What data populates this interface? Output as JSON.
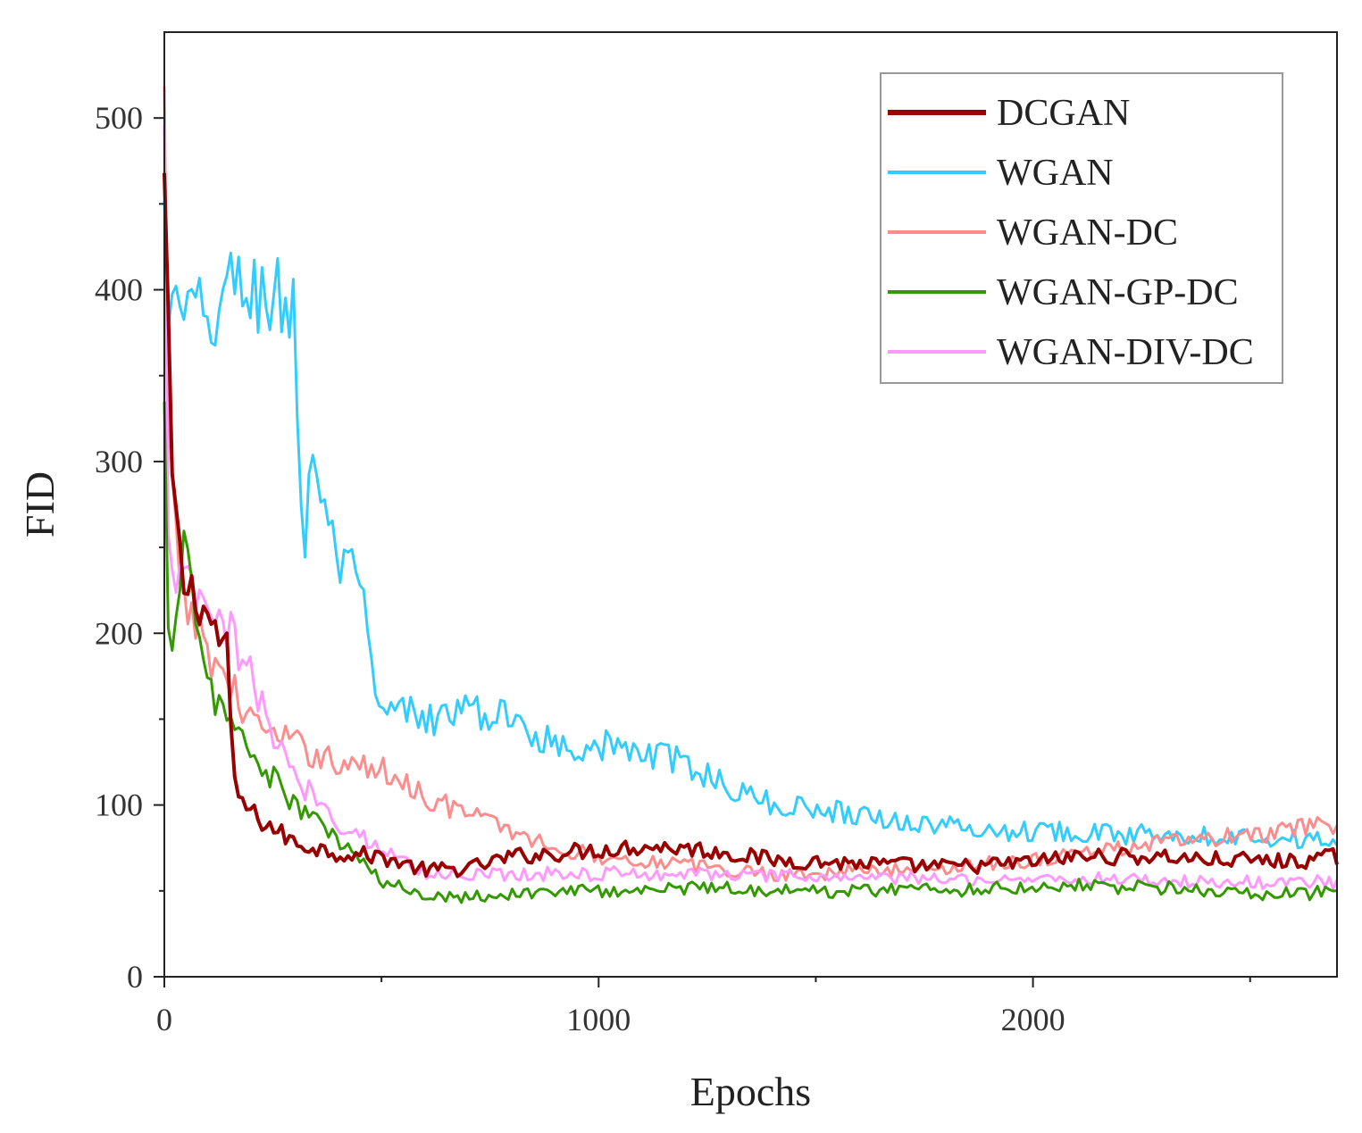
{
  "chart_data": {
    "type": "line",
    "title": "",
    "xlabel": "Epochs",
    "ylabel": "FID",
    "xlim": [
      0,
      2700
    ],
    "ylim": [
      0,
      550
    ],
    "x_ticks": [
      0,
      1000,
      2000
    ],
    "x_tick_labels": [
      "0",
      "1000",
      "2000"
    ],
    "y_ticks": [
      0,
      100,
      200,
      300,
      400,
      500
    ],
    "y_tick_labels": [
      "0",
      "100",
      "200",
      "300",
      "400",
      "500"
    ],
    "grid": false,
    "legend_position": "top-right",
    "series": [
      {
        "name": "DCGAN",
        "color": "#990000",
        "x": [
          0,
          15,
          40,
          80,
          120,
          145,
          160,
          200,
          300,
          400,
          500,
          600,
          700,
          800,
          900,
          1000,
          1100,
          1200,
          1300,
          1400,
          1500,
          1600,
          1700,
          1800,
          1900,
          2000,
          2100,
          2200,
          2300,
          2400,
          2500,
          2600,
          2700
        ],
        "values": [
          460,
          300,
          230,
          220,
          200,
          190,
          110,
          95,
          78,
          72,
          70,
          62,
          63,
          70,
          72,
          74,
          76,
          75,
          72,
          68,
          67,
          66,
          65,
          64,
          65,
          67,
          70,
          70,
          70,
          68,
          68,
          67,
          70
        ]
      },
      {
        "name": "WGAN",
        "color": "#33CCFF",
        "x": [
          0,
          10,
          50,
          100,
          150,
          200,
          250,
          300,
          320,
          340,
          360,
          400,
          450,
          480,
          500,
          550,
          600,
          700,
          800,
          900,
          1000,
          1100,
          1200,
          1300,
          1400,
          1500,
          1600,
          1700,
          1800,
          1900,
          2000,
          2100,
          2200,
          2300,
          2400,
          2500,
          2600,
          2700
        ],
        "values": [
          440,
          385,
          385,
          380,
          400,
          400,
          395,
          390,
          230,
          320,
          280,
          240,
          230,
          170,
          150,
          155,
          150,
          155,
          150,
          135,
          135,
          130,
          125,
          110,
          100,
          98,
          95,
          90,
          88,
          85,
          85,
          85,
          82,
          85,
          82,
          82,
          80,
          80
        ]
      },
      {
        "name": "WGAN-DC",
        "color": "#FF8C8C",
        "x": [
          0,
          10,
          30,
          60,
          100,
          150,
          200,
          250,
          300,
          350,
          400,
          450,
          500,
          550,
          600,
          700,
          800,
          900,
          1000,
          1100,
          1200,
          1300,
          1400,
          1500,
          1600,
          1700,
          1800,
          1900,
          2000,
          2100,
          2200,
          2300,
          2400,
          2500,
          2600,
          2700
        ],
        "values": [
          500,
          300,
          240,
          210,
          190,
          170,
          150,
          140,
          135,
          130,
          125,
          122,
          120,
          115,
          105,
          95,
          85,
          75,
          70,
          68,
          65,
          62,
          60,
          60,
          62,
          62,
          64,
          66,
          68,
          72,
          75,
          78,
          80,
          82,
          85,
          90
        ]
      },
      {
        "name": "WGAN-GP-DC",
        "color": "#339900",
        "x": [
          0,
          10,
          30,
          50,
          70,
          100,
          150,
          200,
          250,
          300,
          400,
          500,
          600,
          700,
          800,
          900,
          1000,
          1100,
          1200,
          1300,
          1400,
          1500,
          1600,
          1700,
          1800,
          1900,
          2000,
          2100,
          2200,
          2300,
          2400,
          2500,
          2600,
          2700
        ],
        "values": [
          320,
          180,
          230,
          260,
          200,
          170,
          150,
          130,
          115,
          100,
          80,
          55,
          48,
          47,
          48,
          50,
          50,
          50,
          52,
          52,
          50,
          50,
          50,
          52,
          50,
          52,
          52,
          54,
          52,
          52,
          50,
          48,
          48,
          50
        ]
      },
      {
        "name": "WGAN-DIV-DC",
        "color": "#FF99FF",
        "x": [
          0,
          10,
          30,
          60,
          100,
          150,
          200,
          250,
          300,
          350,
          400,
          500,
          600,
          700,
          800,
          900,
          1000,
          1100,
          1200,
          1300,
          1400,
          1500,
          1600,
          1700,
          1800,
          1900,
          2000,
          2100,
          2200,
          2300,
          2400,
          2500,
          2600,
          2700
        ],
        "values": [
          470,
          250,
          230,
          225,
          210,
          200,
          175,
          140,
          115,
          105,
          90,
          75,
          60,
          60,
          60,
          60,
          60,
          60,
          60,
          60,
          58,
          58,
          58,
          57,
          57,
          57,
          57,
          57,
          57,
          56,
          55,
          55,
          55,
          55
        ]
      }
    ]
  }
}
